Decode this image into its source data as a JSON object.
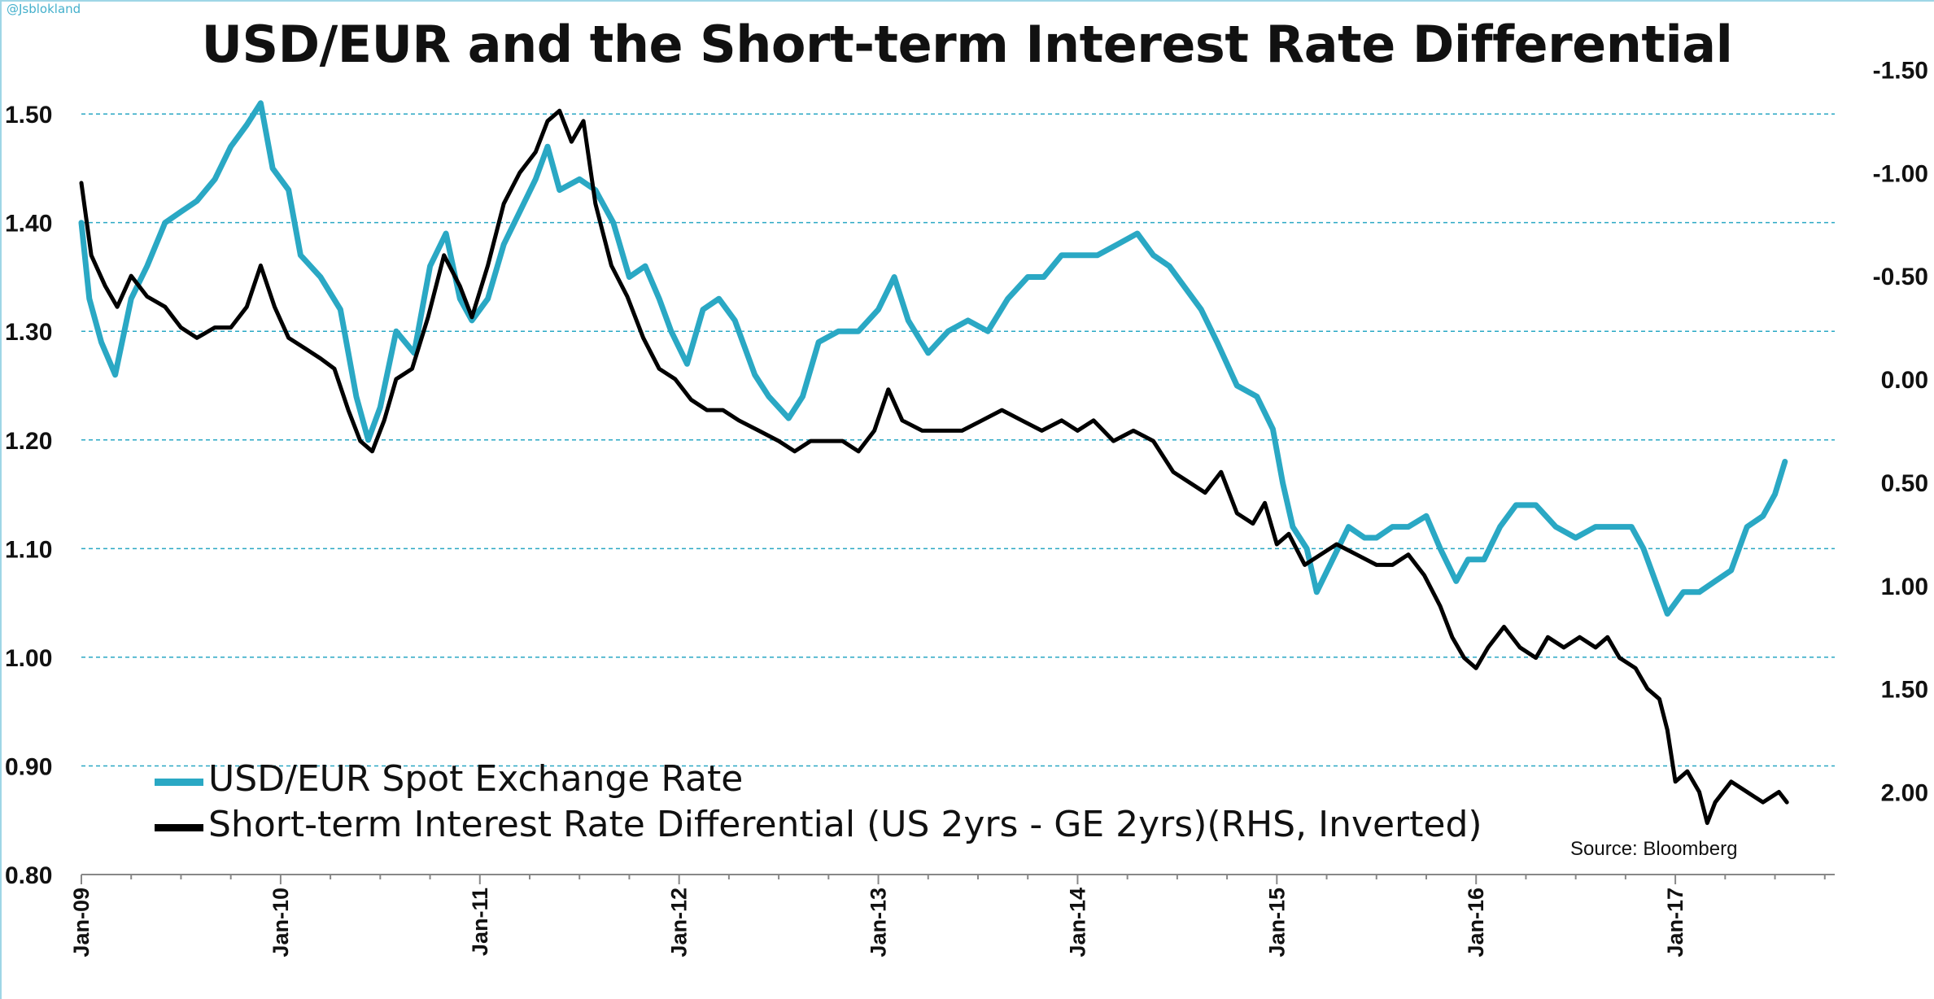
{
  "watermark": "@Jsblokland",
  "source": "Source: Bloomberg",
  "colors": {
    "usd_eur": "#2aa8c4",
    "differential": "#000000",
    "grid": "#2aa8c4"
  },
  "chart_data": {
    "type": "line",
    "title": "USD/EUR and the Short-term Interest Rate Differential",
    "xlabel": "",
    "ylabel": "",
    "grid": "horizontal dashed",
    "legend_position": "bottom-left",
    "x_ticks": [
      "Jan-09",
      "Jan-10",
      "Jan-11",
      "Jan-12",
      "Jan-13",
      "Jan-14",
      "Jan-15",
      "Jan-16",
      "Jan-17"
    ],
    "x_range": [
      2009.0,
      2017.8
    ],
    "y_left": {
      "ticks": [
        "0.80",
        "0.90",
        "1.00",
        "1.10",
        "1.20",
        "1.30",
        "1.40",
        "1.50"
      ],
      "range": [
        0.8,
        1.56
      ]
    },
    "y_right": {
      "ticks": [
        "-1.50",
        "-1.00",
        "-0.50",
        "0.00",
        "0.50",
        "1.00",
        "1.50",
        "2.00"
      ],
      "range": [
        -1.6,
        2.4
      ],
      "inverted": true
    },
    "series": [
      {
        "name": "USD/EUR Spot Exchange Rate",
        "axis": "left",
        "color": "#2aa8c4",
        "points": [
          [
            2009.0,
            1.4
          ],
          [
            2009.04,
            1.33
          ],
          [
            2009.1,
            1.29
          ],
          [
            2009.17,
            1.26
          ],
          [
            2009.25,
            1.33
          ],
          [
            2009.33,
            1.36
          ],
          [
            2009.42,
            1.4
          ],
          [
            2009.5,
            1.41
          ],
          [
            2009.58,
            1.42
          ],
          [
            2009.67,
            1.44
          ],
          [
            2009.75,
            1.47
          ],
          [
            2009.83,
            1.49
          ],
          [
            2009.9,
            1.51
          ],
          [
            2009.96,
            1.45
          ],
          [
            2010.04,
            1.43
          ],
          [
            2010.1,
            1.37
          ],
          [
            2010.2,
            1.35
          ],
          [
            2010.3,
            1.32
          ],
          [
            2010.38,
            1.24
          ],
          [
            2010.44,
            1.2
          ],
          [
            2010.5,
            1.23
          ],
          [
            2010.58,
            1.3
          ],
          [
            2010.67,
            1.28
          ],
          [
            2010.75,
            1.36
          ],
          [
            2010.83,
            1.39
          ],
          [
            2010.9,
            1.33
          ],
          [
            2010.96,
            1.31
          ],
          [
            2011.04,
            1.33
          ],
          [
            2011.12,
            1.38
          ],
          [
            2011.2,
            1.41
          ],
          [
            2011.28,
            1.44
          ],
          [
            2011.34,
            1.47
          ],
          [
            2011.4,
            1.43
          ],
          [
            2011.5,
            1.44
          ],
          [
            2011.58,
            1.43
          ],
          [
            2011.67,
            1.4
          ],
          [
            2011.75,
            1.35
          ],
          [
            2011.83,
            1.36
          ],
          [
            2011.9,
            1.33
          ],
          [
            2011.96,
            1.3
          ],
          [
            2012.04,
            1.27
          ],
          [
            2012.12,
            1.32
          ],
          [
            2012.2,
            1.33
          ],
          [
            2012.28,
            1.31
          ],
          [
            2012.38,
            1.26
          ],
          [
            2012.45,
            1.24
          ],
          [
            2012.55,
            1.22
          ],
          [
            2012.62,
            1.24
          ],
          [
            2012.7,
            1.29
          ],
          [
            2012.8,
            1.3
          ],
          [
            2012.9,
            1.3
          ],
          [
            2013.0,
            1.32
          ],
          [
            2013.08,
            1.35
          ],
          [
            2013.15,
            1.31
          ],
          [
            2013.25,
            1.28
          ],
          [
            2013.35,
            1.3
          ],
          [
            2013.45,
            1.31
          ],
          [
            2013.55,
            1.3
          ],
          [
            2013.65,
            1.33
          ],
          [
            2013.75,
            1.35
          ],
          [
            2013.83,
            1.35
          ],
          [
            2013.92,
            1.37
          ],
          [
            2014.0,
            1.37
          ],
          [
            2014.1,
            1.37
          ],
          [
            2014.2,
            1.38
          ],
          [
            2014.3,
            1.39
          ],
          [
            2014.38,
            1.37
          ],
          [
            2014.46,
            1.36
          ],
          [
            2014.54,
            1.34
          ],
          [
            2014.62,
            1.32
          ],
          [
            2014.7,
            1.29
          ],
          [
            2014.8,
            1.25
          ],
          [
            2014.9,
            1.24
          ],
          [
            2014.98,
            1.21
          ],
          [
            2015.03,
            1.16
          ],
          [
            2015.08,
            1.12
          ],
          [
            2015.15,
            1.1
          ],
          [
            2015.2,
            1.06
          ],
          [
            2015.28,
            1.09
          ],
          [
            2015.36,
            1.12
          ],
          [
            2015.44,
            1.11
          ],
          [
            2015.5,
            1.11
          ],
          [
            2015.58,
            1.12
          ],
          [
            2015.66,
            1.12
          ],
          [
            2015.75,
            1.13
          ],
          [
            2015.82,
            1.1
          ],
          [
            2015.9,
            1.07
          ],
          [
            2015.96,
            1.09
          ],
          [
            2016.04,
            1.09
          ],
          [
            2016.12,
            1.12
          ],
          [
            2016.2,
            1.14
          ],
          [
            2016.3,
            1.14
          ],
          [
            2016.4,
            1.12
          ],
          [
            2016.5,
            1.11
          ],
          [
            2016.6,
            1.12
          ],
          [
            2016.7,
            1.12
          ],
          [
            2016.78,
            1.12
          ],
          [
            2016.84,
            1.1
          ],
          [
            2016.9,
            1.07
          ],
          [
            2016.96,
            1.04
          ],
          [
            2017.04,
            1.06
          ],
          [
            2017.12,
            1.06
          ],
          [
            2017.2,
            1.07
          ],
          [
            2017.28,
            1.08
          ],
          [
            2017.36,
            1.12
          ],
          [
            2017.44,
            1.13
          ],
          [
            2017.5,
            1.15
          ],
          [
            2017.55,
            1.18
          ]
        ]
      },
      {
        "name": "Short-term Interest Rate Differential (US 2yrs - GE 2yrs)(RHS, Inverted)",
        "axis": "right",
        "color": "#000000",
        "points": [
          [
            2009.0,
            -0.95
          ],
          [
            2009.05,
            -0.6
          ],
          [
            2009.12,
            -0.45
          ],
          [
            2009.18,
            -0.35
          ],
          [
            2009.25,
            -0.5
          ],
          [
            2009.33,
            -0.4
          ],
          [
            2009.42,
            -0.35
          ],
          [
            2009.5,
            -0.25
          ],
          [
            2009.58,
            -0.2
          ],
          [
            2009.67,
            -0.25
          ],
          [
            2009.75,
            -0.25
          ],
          [
            2009.83,
            -0.35
          ],
          [
            2009.9,
            -0.55
          ],
          [
            2009.97,
            -0.35
          ],
          [
            2010.04,
            -0.2
          ],
          [
            2010.12,
            -0.15
          ],
          [
            2010.2,
            -0.1
          ],
          [
            2010.27,
            -0.05
          ],
          [
            2010.34,
            0.15
          ],
          [
            2010.4,
            0.3
          ],
          [
            2010.46,
            0.35
          ],
          [
            2010.52,
            0.2
          ],
          [
            2010.58,
            0.0
          ],
          [
            2010.66,
            -0.05
          ],
          [
            2010.74,
            -0.3
          ],
          [
            2010.82,
            -0.6
          ],
          [
            2010.9,
            -0.45
          ],
          [
            2010.96,
            -0.3
          ],
          [
            2011.04,
            -0.55
          ],
          [
            2011.12,
            -0.85
          ],
          [
            2011.2,
            -1.0
          ],
          [
            2011.28,
            -1.1
          ],
          [
            2011.34,
            -1.25
          ],
          [
            2011.4,
            -1.3
          ],
          [
            2011.46,
            -1.15
          ],
          [
            2011.52,
            -1.25
          ],
          [
            2011.58,
            -0.85
          ],
          [
            2011.66,
            -0.55
          ],
          [
            2011.74,
            -0.4
          ],
          [
            2011.82,
            -0.2
          ],
          [
            2011.9,
            -0.05
          ],
          [
            2011.98,
            0.0
          ],
          [
            2012.06,
            0.1
          ],
          [
            2012.14,
            0.15
          ],
          [
            2012.22,
            0.15
          ],
          [
            2012.3,
            0.2
          ],
          [
            2012.4,
            0.25
          ],
          [
            2012.5,
            0.3
          ],
          [
            2012.58,
            0.35
          ],
          [
            2012.66,
            0.3
          ],
          [
            2012.74,
            0.3
          ],
          [
            2012.82,
            0.3
          ],
          [
            2012.9,
            0.35
          ],
          [
            2012.98,
            0.25
          ],
          [
            2013.05,
            0.05
          ],
          [
            2013.12,
            0.2
          ],
          [
            2013.22,
            0.25
          ],
          [
            2013.32,
            0.25
          ],
          [
            2013.42,
            0.25
          ],
          [
            2013.52,
            0.2
          ],
          [
            2013.62,
            0.15
          ],
          [
            2013.72,
            0.2
          ],
          [
            2013.82,
            0.25
          ],
          [
            2013.92,
            0.2
          ],
          [
            2014.0,
            0.25
          ],
          [
            2014.08,
            0.2
          ],
          [
            2014.18,
            0.3
          ],
          [
            2014.28,
            0.25
          ],
          [
            2014.38,
            0.3
          ],
          [
            2014.48,
            0.45
          ],
          [
            2014.56,
            0.5
          ],
          [
            2014.64,
            0.55
          ],
          [
            2014.72,
            0.45
          ],
          [
            2014.8,
            0.65
          ],
          [
            2014.88,
            0.7
          ],
          [
            2014.94,
            0.6
          ],
          [
            2015.0,
            0.8
          ],
          [
            2015.06,
            0.75
          ],
          [
            2015.14,
            0.9
          ],
          [
            2015.22,
            0.85
          ],
          [
            2015.3,
            0.8
          ],
          [
            2015.4,
            0.85
          ],
          [
            2015.5,
            0.9
          ],
          [
            2015.58,
            0.9
          ],
          [
            2015.66,
            0.85
          ],
          [
            2015.74,
            0.95
          ],
          [
            2015.82,
            1.1
          ],
          [
            2015.88,
            1.25
          ],
          [
            2015.94,
            1.35
          ],
          [
            2016.0,
            1.4
          ],
          [
            2016.06,
            1.3
          ],
          [
            2016.14,
            1.2
          ],
          [
            2016.22,
            1.3
          ],
          [
            2016.3,
            1.35
          ],
          [
            2016.36,
            1.25
          ],
          [
            2016.44,
            1.3
          ],
          [
            2016.52,
            1.25
          ],
          [
            2016.6,
            1.3
          ],
          [
            2016.66,
            1.25
          ],
          [
            2016.72,
            1.35
          ],
          [
            2016.8,
            1.4
          ],
          [
            2016.86,
            1.5
          ],
          [
            2016.92,
            1.55
          ],
          [
            2016.96,
            1.7
          ],
          [
            2017.0,
            1.95
          ],
          [
            2017.06,
            1.9
          ],
          [
            2017.12,
            2.0
          ],
          [
            2017.16,
            2.15
          ],
          [
            2017.2,
            2.05
          ],
          [
            2017.28,
            1.95
          ],
          [
            2017.36,
            2.0
          ],
          [
            2017.44,
            2.05
          ],
          [
            2017.52,
            2.0
          ],
          [
            2017.56,
            2.05
          ]
        ]
      }
    ]
  }
}
